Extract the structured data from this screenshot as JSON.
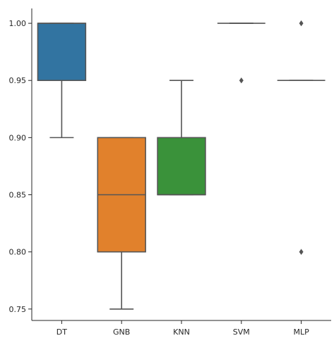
{
  "chart_data": {
    "type": "boxplot",
    "title": "",
    "xlabel": "",
    "ylabel": "",
    "ylim": [
      0.74,
      1.013
    ],
    "yticks": [
      0.75,
      0.8,
      0.85,
      0.9,
      0.95,
      1.0
    ],
    "ytick_labels": [
      "0.75",
      "0.80",
      "0.85",
      "0.90",
      "0.95",
      "1.00"
    ],
    "grid": false,
    "categories": [
      "DT",
      "GNB",
      "KNN",
      "SVM",
      "MLP"
    ],
    "series": [
      {
        "category": "DT",
        "color": "#3274a1",
        "q1": 0.95,
        "median": 1.0,
        "q3": 1.0,
        "whisker_low": 0.9,
        "whisker_high": 1.0,
        "outliers": []
      },
      {
        "category": "GNB",
        "color": "#e1812c",
        "q1": 0.8,
        "median": 0.85,
        "q3": 0.9,
        "whisker_low": 0.75,
        "whisker_high": 0.9,
        "outliers": []
      },
      {
        "category": "KNN",
        "color": "#3a923a",
        "q1": 0.85,
        "median": 0.85,
        "q3": 0.9,
        "whisker_low": 0.85,
        "whisker_high": 0.95,
        "outliers": []
      },
      {
        "category": "SVM",
        "color": "#c03d3e",
        "q1": 1.0,
        "median": 1.0,
        "q3": 1.0,
        "whisker_low": 1.0,
        "whisker_high": 1.0,
        "outliers": [
          0.95
        ]
      },
      {
        "category": "MLP",
        "color": "#9372b2",
        "q1": 0.95,
        "median": 0.95,
        "q3": 0.95,
        "whisker_low": 0.95,
        "whisker_high": 0.95,
        "outliers": [
          1.0,
          0.8
        ]
      }
    ]
  }
}
